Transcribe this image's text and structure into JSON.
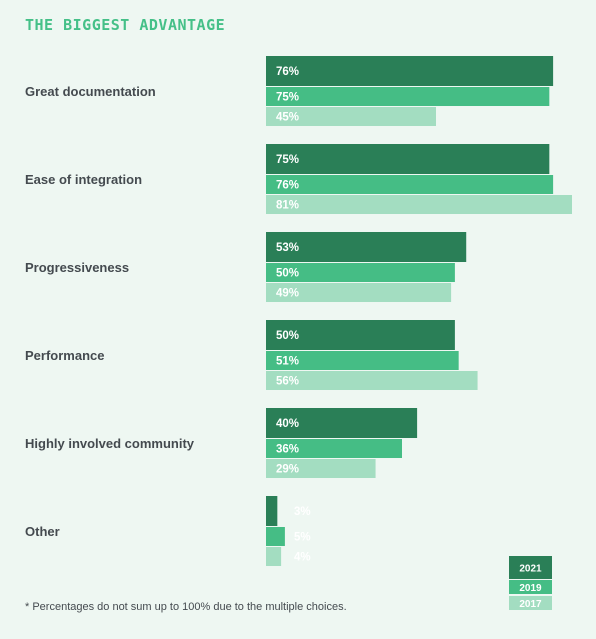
{
  "chart_data": {
    "type": "bar",
    "orientation": "horizontal",
    "title": "THE BIGGEST ADVANTAGE",
    "categories": [
      "Great documentation",
      "Ease of integration",
      "Progressiveness",
      "Performance",
      "Highly involved community",
      "Other"
    ],
    "series": [
      {
        "name": "2021",
        "values": [
          76,
          75,
          53,
          50,
          40,
          3
        ],
        "color": "#2a7f57"
      },
      {
        "name": "2019",
        "values": [
          75,
          76,
          50,
          51,
          36,
          5
        ],
        "color": "#45bd85"
      },
      {
        "name": "2017",
        "values": [
          45,
          81,
          49,
          56,
          29,
          4
        ],
        "color": "#a3ddc1"
      }
    ],
    "value_suffix": "%",
    "xlim": [
      0,
      81
    ],
    "legend_position": "bottom-right",
    "grid": false
  },
  "footnote": "* Percentages do not sum up to 100% due to the multiple choices."
}
